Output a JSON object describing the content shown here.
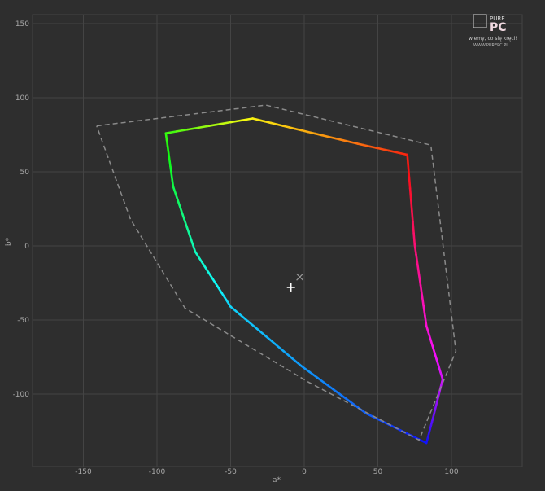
{
  "chart_data": {
    "type": "line",
    "xlabel": "a*",
    "ylabel": "b*",
    "xlim": [
      -183,
      149
    ],
    "ylim": [
      -149,
      157
    ],
    "x_ticks": [
      -150,
      -100,
      -50,
      0,
      50,
      100
    ],
    "y_ticks": [
      150,
      100,
      50,
      0,
      -50,
      -100
    ],
    "grid": true,
    "series": [
      {
        "style": "solid-rainbow",
        "points": [
          {
            "a": -94,
            "b": 76,
            "hue": 110
          },
          {
            "a": -35,
            "b": 86,
            "hue": 58
          },
          {
            "a": -2,
            "b": 78,
            "hue": 42
          },
          {
            "a": 36,
            "b": 69,
            "hue": 25
          },
          {
            "a": 70,
            "b": 61.5,
            "hue": 5
          },
          {
            "a": 75,
            "b": 1,
            "hue": 335
          },
          {
            "a": 83,
            "b": -54,
            "hue": 310
          },
          {
            "a": 94,
            "b": -90,
            "hue": 290
          },
          {
            "a": 88,
            "b": -114,
            "hue": 265
          },
          {
            "a": 83,
            "b": -133,
            "hue": 240
          },
          {
            "a": 42,
            "b": -113,
            "hue": 220
          },
          {
            "a": -2,
            "b": -81,
            "hue": 205
          },
          {
            "a": -50,
            "b": -41,
            "hue": 190
          },
          {
            "a": -74,
            "b": -4,
            "hue": 165
          },
          {
            "a": -89,
            "b": 40,
            "hue": 135
          },
          {
            "a": -94,
            "b": 76,
            "hue": 110
          }
        ]
      },
      {
        "style": "dashed",
        "color": "#8a8a8a",
        "points": [
          {
            "a": -141,
            "b": 81
          },
          {
            "a": -26,
            "b": 95
          },
          {
            "a": 86,
            "b": 68
          },
          {
            "a": 103,
            "b": -71
          },
          {
            "a": 78,
            "b": -131
          },
          {
            "a": 3,
            "b": -92
          },
          {
            "a": -81,
            "b": -42
          },
          {
            "a": -118,
            "b": 18
          },
          {
            "a": -141,
            "b": 81
          }
        ]
      }
    ],
    "markers": [
      {
        "symbol": "plus",
        "a": -9,
        "b": -28,
        "color": "#ffffff"
      },
      {
        "symbol": "cross",
        "a": -3,
        "b": -21,
        "color": "#9a9a9a"
      }
    ]
  },
  "logo": {
    "brand": "PURE PC",
    "slogan": "wiemy, co się kręci!",
    "url": "WWW.PUREPC.PL"
  },
  "colors": {
    "background": "#2e2e2e",
    "grid": "#444444",
    "text": "#a8a8a8"
  }
}
